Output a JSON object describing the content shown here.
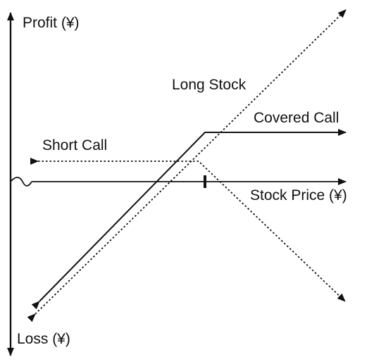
{
  "labels": {
    "profit_axis": "Profit (¥)",
    "loss_axis": "Loss (¥)",
    "stock_price_axis": "Stock Price (¥)",
    "long_stock": "Long Stock",
    "covered_call": "Covered Call",
    "short_call": "Short Call"
  },
  "colors": {
    "ink": "#111111",
    "background": "#ffffff"
  },
  "line_styles": {
    "long_stock": "dotted",
    "covered_call": "solid",
    "short_call": "dotted"
  }
}
